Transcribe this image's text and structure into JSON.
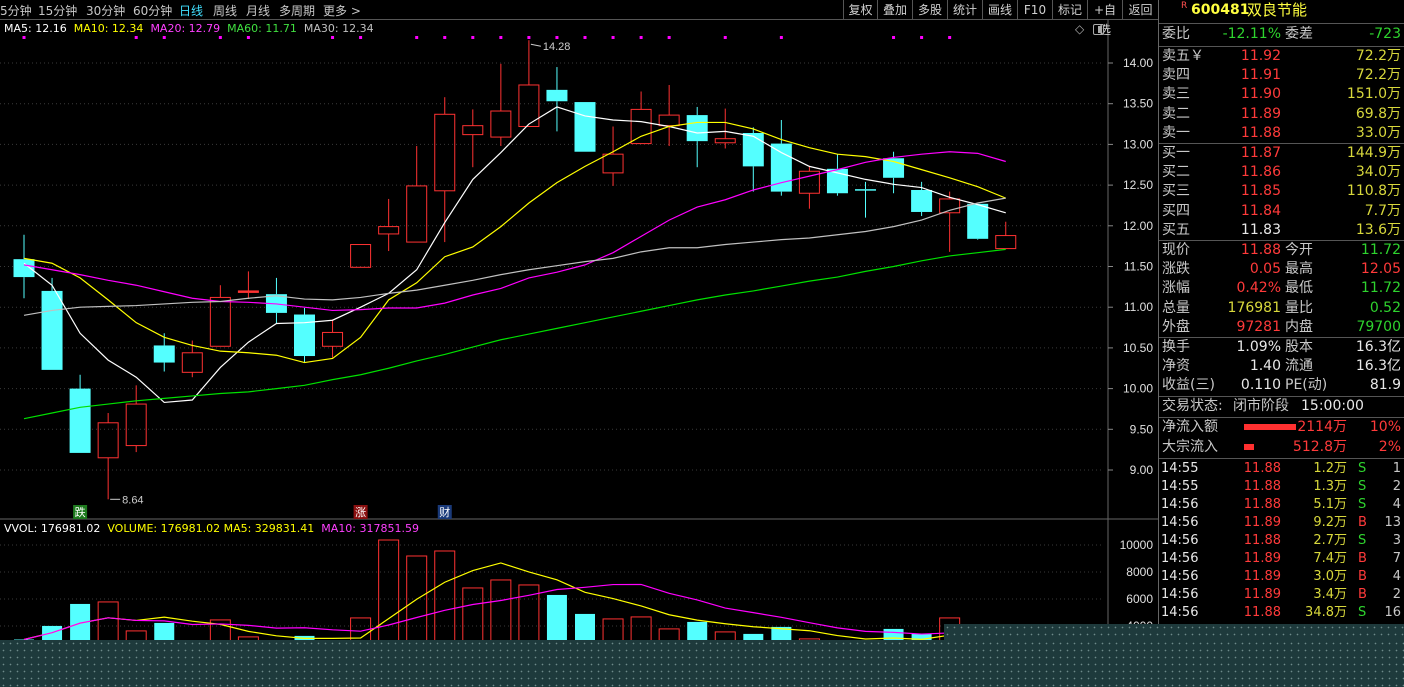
{
  "toolbar": {
    "periods": [
      "5分钟",
      "15分钟",
      "30分钟",
      "60分钟",
      "日线",
      "周线",
      "月线",
      "多周期",
      "更多 >"
    ],
    "active_period": "日线",
    "buttons": [
      "复权",
      "叠加",
      "多股",
      "统计",
      "画线",
      "F10",
      "标记",
      "+自选",
      "返回"
    ]
  },
  "ma_legend": {
    "ma5": "MA5: 12.16",
    "ma10": "MA10: 12.34",
    "ma20": "MA20: 12.79",
    "ma60": "MA60: 11.71",
    "ma30": "MA30: 12.34"
  },
  "vol_legend": {
    "vvol": "VVOL: 176981.02",
    "volume": "VOLUME: 176981.02",
    "ma5": "MA5: 329831.41",
    "ma10": "MA10: 317851.59"
  },
  "colors": {
    "up": "#ff3232",
    "down": "#54ffff",
    "ma5": "#ffffff",
    "ma10": "#ffff00",
    "ma20": "#ff00ff",
    "ma60": "#00e000",
    "ma30": "#c0c0c0",
    "marker": "#ff00ff"
  },
  "chart_data": [
    {
      "type": "candlestick",
      "ylim": [
        8.5,
        14.5
      ],
      "y_ticks": [
        "14.00",
        "13.50",
        "13.00",
        "12.50",
        "12.00",
        "11.50",
        "11.00",
        "10.50",
        "10.00",
        "9.50",
        "9.00"
      ],
      "candles": [
        {
          "o": 11.59,
          "c": 11.37,
          "h": 11.89,
          "l": 11.11
        },
        {
          "o": 11.2,
          "c": 10.23,
          "h": 11.36,
          "l": 10.23
        },
        {
          "o": 10.0,
          "c": 9.21,
          "h": 10.17,
          "l": 9.21
        },
        {
          "o": 9.15,
          "c": 9.58,
          "h": 9.7,
          "l": 8.64
        },
        {
          "o": 9.3,
          "c": 9.81,
          "h": 10.04,
          "l": 9.22
        },
        {
          "o": 10.53,
          "c": 10.32,
          "h": 10.68,
          "l": 10.21
        },
        {
          "o": 10.2,
          "c": 10.44,
          "h": 10.59,
          "l": 10.14
        },
        {
          "o": 10.52,
          "c": 11.12,
          "h": 11.27,
          "l": 10.52
        },
        {
          "o": 11.19,
          "c": 11.2,
          "h": 11.44,
          "l": 11.1
        },
        {
          "o": 11.16,
          "c": 10.93,
          "h": 11.36,
          "l": 10.8
        },
        {
          "o": 10.91,
          "c": 10.4,
          "h": 10.99,
          "l": 10.32
        },
        {
          "o": 10.52,
          "c": 10.69,
          "h": 10.85,
          "l": 10.38
        },
        {
          "o": 11.49,
          "c": 11.77,
          "h": 11.77,
          "l": 11.49
        },
        {
          "o": 11.9,
          "c": 11.99,
          "h": 12.33,
          "l": 11.69
        },
        {
          "o": 11.8,
          "c": 12.49,
          "h": 12.98,
          "l": 11.8
        },
        {
          "o": 12.43,
          "c": 13.37,
          "h": 13.58,
          "l": 11.8
        },
        {
          "o": 13.12,
          "c": 13.23,
          "h": 13.43,
          "l": 12.72
        },
        {
          "o": 13.09,
          "c": 13.41,
          "h": 13.99,
          "l": 12.98
        },
        {
          "o": 13.22,
          "c": 13.73,
          "h": 14.28,
          "l": 13.22
        },
        {
          "o": 13.67,
          "c": 13.53,
          "h": 13.95,
          "l": 13.16
        },
        {
          "o": 13.52,
          "c": 12.91,
          "h": 13.52,
          "l": 12.91
        },
        {
          "o": 12.65,
          "c": 12.88,
          "h": 13.22,
          "l": 12.49
        },
        {
          "o": 13.01,
          "c": 13.43,
          "h": 13.65,
          "l": 13.01
        },
        {
          "o": 13.23,
          "c": 13.36,
          "h": 13.73,
          "l": 12.98
        },
        {
          "o": 13.36,
          "c": 13.04,
          "h": 13.46,
          "l": 12.72
        },
        {
          "o": 13.02,
          "c": 13.07,
          "h": 13.44,
          "l": 12.95
        },
        {
          "o": 13.14,
          "c": 12.73,
          "h": 13.21,
          "l": 12.42
        },
        {
          "o": 13.01,
          "c": 12.42,
          "h": 13.3,
          "l": 12.37
        },
        {
          "o": 12.4,
          "c": 12.67,
          "h": 12.73,
          "l": 12.21
        },
        {
          "o": 12.7,
          "c": 12.4,
          "h": 12.88,
          "l": 12.37
        },
        {
          "o": 12.45,
          "c": 12.44,
          "h": 12.54,
          "l": 12.1
        },
        {
          "o": 12.83,
          "c": 12.59,
          "h": 12.91,
          "l": 12.4
        },
        {
          "o": 12.44,
          "c": 12.17,
          "h": 12.54,
          "l": 12.12
        },
        {
          "o": 12.16,
          "c": 12.33,
          "h": 12.42,
          "l": 11.68
        },
        {
          "o": 12.27,
          "c": 11.84,
          "h": 12.27,
          "l": 11.83
        },
        {
          "o": 11.72,
          "c": 11.88,
          "h": 12.05,
          "l": 11.72
        }
      ],
      "series": [
        {
          "name": "MA5",
          "values": [
            11.54,
            11.27,
            10.68,
            10.35,
            10.14,
            9.83,
            9.86,
            10.26,
            10.57,
            10.8,
            10.81,
            10.84,
            11.0,
            11.17,
            11.46,
            12.04,
            12.57,
            12.9,
            13.25,
            13.46,
            13.35,
            13.3,
            13.28,
            13.22,
            13.14,
            13.16,
            13.1,
            12.9,
            12.73,
            12.65,
            12.57,
            12.51,
            12.47,
            12.35,
            12.26,
            12.16
          ]
        },
        {
          "name": "MA10",
          "values": [
            11.6,
            11.54,
            11.36,
            11.09,
            10.81,
            10.63,
            10.53,
            10.46,
            10.44,
            10.41,
            10.32,
            10.37,
            10.63,
            11.09,
            11.3,
            11.62,
            11.74,
            11.99,
            12.28,
            12.53,
            12.73,
            12.91,
            13.1,
            13.22,
            13.27,
            13.27,
            13.19,
            13.06,
            12.96,
            12.88,
            12.85,
            12.79,
            12.69,
            12.59,
            12.48,
            12.34
          ]
        },
        {
          "name": "MA20",
          "values": [
            11.52,
            11.46,
            11.4,
            11.33,
            11.27,
            11.19,
            11.11,
            11.07,
            11.06,
            11.04,
            11.0,
            10.96,
            10.97,
            10.99,
            10.99,
            11.05,
            11.15,
            11.23,
            11.36,
            11.43,
            11.52,
            11.67,
            11.87,
            12.07,
            12.23,
            12.32,
            12.44,
            12.53,
            12.61,
            12.69,
            12.78,
            12.84,
            12.88,
            12.91,
            12.89,
            12.79
          ]
        },
        {
          "name": "MA60",
          "values": [
            9.63,
            9.7,
            9.77,
            9.81,
            9.85,
            9.88,
            9.91,
            9.94,
            9.96,
            10.0,
            10.04,
            10.11,
            10.17,
            10.25,
            10.34,
            10.42,
            10.51,
            10.6,
            10.67,
            10.74,
            10.81,
            10.88,
            10.95,
            11.02,
            11.09,
            11.15,
            11.2,
            11.26,
            11.32,
            11.37,
            11.44,
            11.5,
            11.57,
            11.63,
            11.67,
            11.71
          ]
        },
        {
          "name": "MA30",
          "values": [
            10.9,
            10.96,
            11.0,
            11.01,
            11.02,
            11.04,
            11.06,
            11.07,
            11.11,
            11.14,
            11.1,
            11.09,
            11.12,
            11.17,
            11.21,
            11.27,
            11.33,
            11.4,
            11.46,
            11.51,
            11.56,
            11.6,
            11.68,
            11.73,
            11.73,
            11.77,
            11.8,
            11.83,
            11.85,
            11.89,
            11.93,
            11.99,
            12.07,
            12.19,
            12.28,
            12.34
          ]
        }
      ],
      "annotations": [
        {
          "candle": 19,
          "text": "14.28"
        },
        {
          "candle": 4,
          "text": "8.64"
        }
      ],
      "marker_candles": [
        1,
        5,
        6,
        8,
        9,
        12,
        13,
        15,
        16,
        17,
        18,
        19,
        20,
        21,
        22,
        23,
        24,
        26,
        28,
        32,
        33,
        34
      ],
      "event_tags": [
        {
          "candle": 3,
          "text": "跌",
          "color": "#1e7a1e"
        },
        {
          "candle": 13,
          "text": "涨",
          "color": "#8a1010"
        },
        {
          "candle": 16,
          "text": "财",
          "color": "#1a3a7a"
        }
      ]
    },
    {
      "type": "bar",
      "y_ticks": [
        "10000",
        "8000",
        "6000",
        "4000"
      ],
      "values": [
        3000,
        4006,
        5634,
        5782,
        3636,
        4228,
        2500,
        4450,
        3192,
        2000,
        3266,
        2500,
        4598,
        10370,
        9186,
        9556,
        6818,
        7410,
        7040,
        6300,
        4894,
        4524,
        4672,
        3784,
        4302,
        3562,
        3414,
        3932,
        3044,
        2500,
        2300,
        3784,
        3414,
        4598,
        3000,
        1770
      ]
    }
  ],
  "quote": {
    "badge": "R",
    "code": "600481",
    "name": "双良节能",
    "weibi_label": "委比",
    "weibi": "-12.11%",
    "weicha_label": "委差",
    "weicha": "-723",
    "sell": [
      {
        "label": "卖五￥",
        "price": "11.92",
        "vol": "72.2万"
      },
      {
        "label": "卖四",
        "price": "11.91",
        "vol": "72.2万"
      },
      {
        "label": "卖三",
        "price": "11.90",
        "vol": "151.0万"
      },
      {
        "label": "卖二",
        "price": "11.89",
        "vol": "69.8万"
      },
      {
        "label": "卖一",
        "price": "11.88",
        "vol": "33.0万"
      }
    ],
    "buy": [
      {
        "label": "买一",
        "price": "11.87",
        "vol": "144.9万"
      },
      {
        "label": "买二",
        "price": "11.86",
        "vol": "34.0万"
      },
      {
        "label": "买三",
        "price": "11.85",
        "vol": "110.8万"
      },
      {
        "label": "买四",
        "price": "11.84",
        "vol": "7.7万"
      },
      {
        "label": "买五",
        "price": "11.83",
        "vol": "13.6万"
      }
    ],
    "stats": [
      {
        "l1": "现价",
        "v1": "11.88",
        "c1": "red",
        "l2": "今开",
        "v2": "11.72",
        "c2": "green"
      },
      {
        "l1": "涨跌",
        "v1": "0.05",
        "c1": "red",
        "l2": "最高",
        "v2": "12.05",
        "c2": "red"
      },
      {
        "l1": "涨幅",
        "v1": "0.42%",
        "c1": "red",
        "l2": "最低",
        "v2": "11.72",
        "c2": "green"
      },
      {
        "l1": "总量",
        "v1": "176981",
        "c1": "yel",
        "l2": "量比",
        "v2": "0.52",
        "c2": "green"
      },
      {
        "l1": "外盘",
        "v1": "97281",
        "c1": "red",
        "l2": "内盘",
        "v2": "79700",
        "c2": "green"
      }
    ],
    "stats2": [
      {
        "l1": "换手",
        "v1": "1.09%",
        "l2": "股本",
        "v2": "16.3亿"
      },
      {
        "l1": "净资",
        "v1": "1.40",
        "l2": "流通",
        "v2": "16.3亿"
      },
      {
        "l1": "收益(三)",
        "v1": "0.110",
        "l2": "PE(动)",
        "v2": "81.9"
      }
    ],
    "trade_status_label": "交易状态:",
    "trade_status": "闭市阶段",
    "trade_time": "15:00:00",
    "flows": [
      {
        "label": "净流入额",
        "amount": "2114万",
        "pct": "10%",
        "level": 0.1
      },
      {
        "label": "大宗流入",
        "amount": "512.8万",
        "pct": "2%",
        "level": 0.02
      }
    ],
    "ticks": [
      {
        "t": "14:55",
        "p": "11.88",
        "v": "1.2万",
        "s": "S",
        "n": "1"
      },
      {
        "t": "14:55",
        "p": "11.88",
        "v": "1.3万",
        "s": "S",
        "n": "2"
      },
      {
        "t": "14:56",
        "p": "11.88",
        "v": "5.1万",
        "s": "S",
        "n": "4"
      },
      {
        "t": "14:56",
        "p": "11.89",
        "v": "9.2万",
        "s": "B",
        "n": "13"
      },
      {
        "t": "14:56",
        "p": "11.88",
        "v": "2.7万",
        "s": "S",
        "n": "3"
      },
      {
        "t": "14:56",
        "p": "11.89",
        "v": "7.4万",
        "s": "B",
        "n": "7"
      },
      {
        "t": "14:56",
        "p": "11.89",
        "v": "3.0万",
        "s": "B",
        "n": "4"
      },
      {
        "t": "14:56",
        "p": "11.89",
        "v": "3.4万",
        "s": "B",
        "n": "2"
      },
      {
        "t": "14:56",
        "p": "11.88",
        "v": "34.8万",
        "s": "S",
        "n": "16"
      }
    ]
  }
}
